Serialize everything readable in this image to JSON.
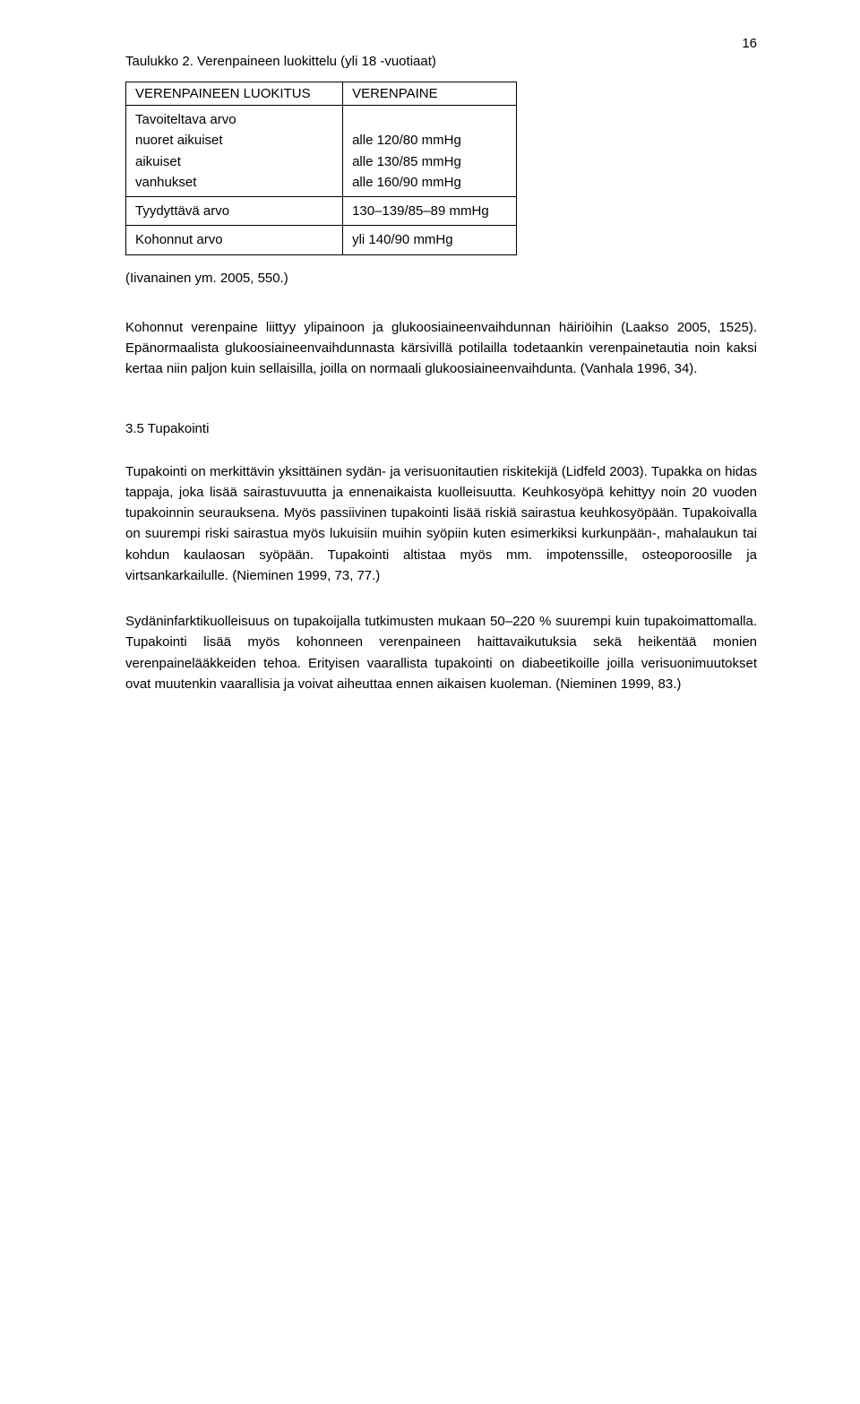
{
  "page_number": "16",
  "table_caption": "Taulukko 2. Verenpaineen luokittelu (yli 18 -vuotiaat)",
  "table": {
    "header_left": "VERENPAINEEN LUOKITUS",
    "header_right": "VERENPAINE",
    "rows": [
      {
        "left": "Tavoiteltava arvo\nnuoret aikuiset\naikuiset\nvanhukset",
        "right": "\nalle 120/80 mmHg\nalle 130/85 mmHg\nalle 160/90 mmHg"
      },
      {
        "left": "Tyydyttävä arvo",
        "right": "130–139/85–89 mmHg"
      },
      {
        "left": "Kohonnut arvo",
        "right": "yli 140/90 mmHg"
      }
    ],
    "source": "(Iivanainen ym. 2005, 550.)"
  },
  "para1": "Kohonnut verenpaine liittyy ylipainoon ja glukoosiaineenvaihdunnan häiriöihin (Laakso 2005, 1525). Epänormaalista glukoosiaineenvaihdunnasta kärsivillä potilailla todetaankin verenpainetautia noin kaksi kertaa niin paljon kuin sellaisilla, joilla on normaali glukoosiaineenvaihdunta. (Vanhala 1996, 34).",
  "section_heading": "3.5 Tupakointi",
  "para2": "Tupakointi on merkittävin yksittäinen sydän- ja verisuonitautien riskitekijä (Lidfeld 2003). Tupakka on hidas tappaja, joka lisää sairastuvuutta ja ennenaikaista kuolleisuutta. Keuhkosyöpä kehittyy noin 20 vuoden tupakoinnin seurauksena. Myös passiivinen tupakointi lisää riskiä sairastua keuhkosyöpään. Tupakoivalla on suurempi riski sairastua myös lukuisiin muihin syöpiin kuten esimerkiksi kurkunpään-, mahalaukun tai kohdun kaulaosan syöpään. Tupakointi altistaa myös mm. impotenssille, osteoporoosille ja virtsankarkailulle. (Nieminen 1999, 73, 77.)",
  "para3": "Sydäninfarktikuolleisuus on tupakoijalla tutkimusten mukaan 50–220 % suurempi kuin tupakoimattomalla. Tupakointi lisää myös kohonneen verenpaineen haittavaikutuksia sekä heikentää monien verenpainelääkkeiden tehoa. Erityisen vaarallista tupakointi on diabeetikoille joilla verisuonimuutokset ovat muutenkin vaarallisia ja voivat aiheuttaa ennen aikaisen kuoleman. (Nieminen 1999, 83.)"
}
